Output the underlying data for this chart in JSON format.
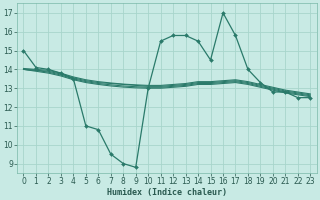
{
  "bg_color": "#c8eae4",
  "grid_color": "#a8d5cc",
  "line_color": "#2a7a6a",
  "line_width": 0.9,
  "marker_size": 2.0,
  "xlim": [
    -0.5,
    23.5
  ],
  "ylim": [
    8.5,
    17.5
  ],
  "xticks": [
    0,
    1,
    2,
    3,
    4,
    5,
    6,
    7,
    8,
    9,
    10,
    11,
    12,
    13,
    14,
    15,
    16,
    17,
    18,
    19,
    20,
    21,
    22,
    23
  ],
  "yticks": [
    9,
    10,
    11,
    12,
    13,
    14,
    15,
    16,
    17
  ],
  "xlabel": "Humidex (Indice chaleur)",
  "xlabel_fontsize": 6.0,
  "tick_fontsize": 5.5,
  "line1_x": [
    0,
    1,
    2,
    3,
    4,
    5,
    6,
    7,
    8,
    9,
    10,
    11,
    12,
    13,
    14,
    15,
    16,
    17,
    18,
    19,
    20,
    21,
    22,
    23
  ],
  "line1_y": [
    15.0,
    14.1,
    14.0,
    13.8,
    13.5,
    11.0,
    10.8,
    9.5,
    9.0,
    8.8,
    13.0,
    15.5,
    15.8,
    15.8,
    15.5,
    14.5,
    17.0,
    15.8,
    14.0,
    13.3,
    12.8,
    12.8,
    12.5,
    12.5
  ],
  "line2_x": [
    0,
    1,
    2,
    3,
    4,
    5,
    6,
    7,
    8,
    9,
    10,
    11,
    12,
    13,
    14,
    15,
    16,
    17,
    18,
    19,
    20,
    21,
    22,
    23
  ],
  "line2_y": [
    14.0,
    13.95,
    13.9,
    13.75,
    13.55,
    13.4,
    13.3,
    13.25,
    13.2,
    13.15,
    13.1,
    13.1,
    13.15,
    13.2,
    13.3,
    13.3,
    13.35,
    13.4,
    13.3,
    13.15,
    13.0,
    12.85,
    12.75,
    12.65
  ],
  "line3_x": [
    0,
    1,
    2,
    3,
    4,
    5,
    6,
    7,
    8,
    9,
    10,
    11,
    12,
    13,
    14,
    15,
    16,
    17,
    18,
    19,
    20,
    21,
    22,
    23
  ],
  "line3_y": [
    14.0,
    13.95,
    13.85,
    13.7,
    13.5,
    13.35,
    13.25,
    13.18,
    13.12,
    13.08,
    13.05,
    13.05,
    13.1,
    13.15,
    13.25,
    13.25,
    13.3,
    13.35,
    13.25,
    13.1,
    12.95,
    12.8,
    12.7,
    12.6
  ],
  "line4_x": [
    0,
    1,
    2,
    3,
    4,
    5,
    6,
    7,
    8,
    9,
    10,
    11,
    12,
    13,
    14,
    15,
    16,
    17,
    18,
    19,
    20,
    21,
    22,
    23
  ],
  "line4_y": [
    14.0,
    13.9,
    13.8,
    13.65,
    13.45,
    13.3,
    13.2,
    13.12,
    13.06,
    13.02,
    13.0,
    13.0,
    13.05,
    13.1,
    13.2,
    13.2,
    13.25,
    13.3,
    13.2,
    13.05,
    12.9,
    12.75,
    12.65,
    12.55
  ],
  "line5_x": [
    0,
    1,
    2,
    3,
    4,
    5,
    6,
    7,
    8,
    9,
    10,
    11,
    12,
    13,
    14,
    15,
    16,
    17,
    18,
    19,
    20,
    21,
    22,
    23
  ],
  "line5_y": [
    14.05,
    14.0,
    13.95,
    13.8,
    13.6,
    13.45,
    13.35,
    13.28,
    13.22,
    13.18,
    13.15,
    13.15,
    13.2,
    13.25,
    13.35,
    13.35,
    13.4,
    13.45,
    13.35,
    13.2,
    13.05,
    12.9,
    12.8,
    12.7
  ]
}
